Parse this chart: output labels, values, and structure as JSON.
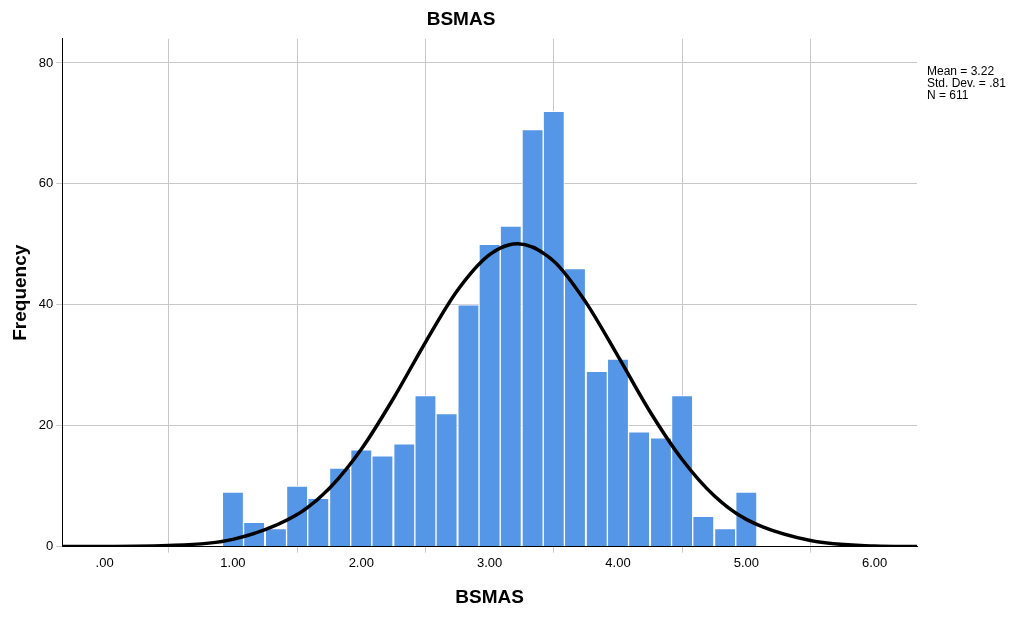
{
  "chart_data": {
    "type": "histogram",
    "title": "BSMAS",
    "xlabel": "BSMAS",
    "ylabel": "Frequency",
    "bins": [
      0.92,
      1.08,
      1.25,
      1.42,
      1.58,
      1.75,
      1.92,
      2.08,
      2.25,
      2.42,
      2.58,
      2.75,
      2.92,
      3.08,
      3.25,
      3.42,
      3.58,
      3.75,
      3.92,
      4.08,
      4.25,
      4.42,
      4.58,
      4.75,
      4.92,
      5.08
    ],
    "series": [
      {
        "color": "#5596e6",
        "values": [
          9,
          4,
          3,
          10,
          8,
          13,
          16,
          15,
          17,
          25,
          22,
          40,
          50,
          53,
          69,
          72,
          46,
          29,
          31,
          19,
          18,
          25,
          5,
          3,
          9
        ]
      },
      {
        "type": "line",
        "color": "#000000",
        "x": [
          -0.33,
          0.5,
          1.0,
          1.5,
          1.75,
          2.0,
          2.25,
          2.5,
          2.75,
          3.0,
          3.22,
          3.5,
          3.75,
          4.0,
          4.25,
          4.5,
          4.75,
          5.0,
          5.5,
          6.0,
          6.33
        ],
        "values": [
          0,
          0.2,
          1.2,
          5.3,
          9.6,
          16.1,
          24.5,
          33.8,
          42.4,
          48.3,
          50.1,
          47.2,
          40.4,
          31.5,
          22.3,
          14.4,
          8.4,
          4.5,
          1.0,
          0.1,
          0
        ]
      }
    ],
    "xlim": [
      -0.33,
      6.33
    ],
    "xticks": [
      {
        "value": 0,
        "label": ".00"
      },
      {
        "value": 1,
        "label": "1.00"
      },
      {
        "value": 2,
        "label": "2.00"
      },
      {
        "value": 3,
        "label": "3.00"
      },
      {
        "value": 4,
        "label": "4.00"
      },
      {
        "value": 5,
        "label": "5.00"
      },
      {
        "value": 6,
        "label": "6.00"
      }
    ],
    "ylim": [
      0,
      84
    ],
    "yticks": [
      0,
      20,
      40,
      60,
      80
    ],
    "grid": true,
    "legend": false,
    "annotations": [
      "Mean = 3.22",
      "Std. Dev. = .81",
      "N = 611"
    ]
  }
}
